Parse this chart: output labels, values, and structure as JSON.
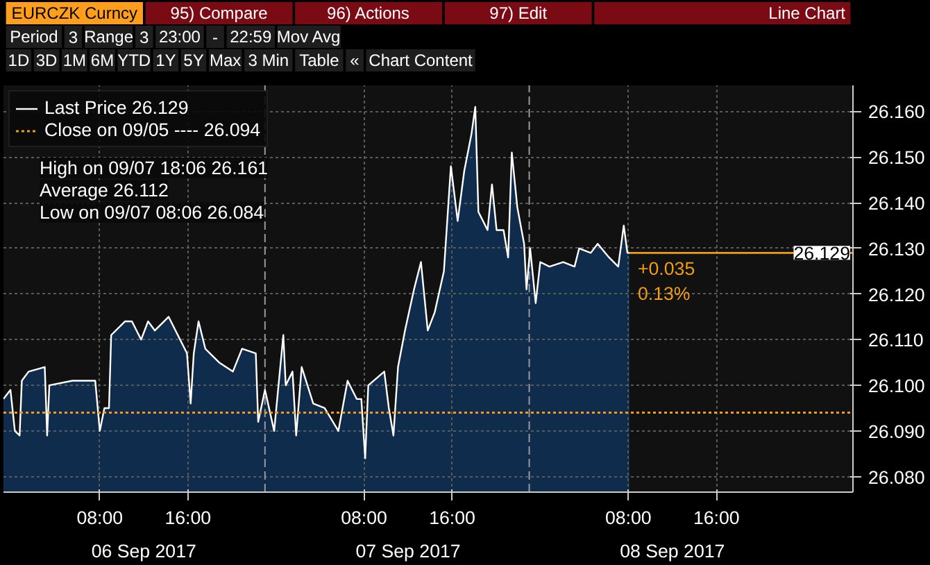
{
  "chart_data": {
    "type": "area",
    "title": "EURCZK Curncy",
    "subtitle": "Line Chart",
    "x": [
      "2017-09-05T23:15",
      "2017-09-05T23:53",
      "2017-09-06T00:17",
      "2017-09-06T00:43",
      "2017-09-06T00:55",
      "2017-09-06T01:32",
      "2017-09-06T03:00",
      "2017-09-06T03:13",
      "2017-09-06T03:25",
      "2017-09-06T05:30",
      "2017-09-06T07:35",
      "2017-09-06T08:00",
      "2017-09-06T08:25",
      "2017-09-06T08:50",
      "2017-09-06T09:02",
      "2017-09-06T10:17",
      "2017-09-06T10:55",
      "2017-09-06T11:45",
      "2017-09-06T12:23",
      "2017-09-06T13:00",
      "2017-09-06T14:15",
      "2017-09-06T15:05",
      "2017-09-06T15:55",
      "2017-09-06T16:15",
      "2017-09-06T16:32",
      "2017-09-06T16:58",
      "2017-09-06T17:35",
      "2017-09-06T18:50",
      "2017-09-06T20:05",
      "2017-09-06T20:55",
      "2017-09-06T22:10",
      "2017-09-06T22:23",
      "2017-09-06T23:00",
      "2017-09-06T23:50",
      "2017-09-07T00:40",
      "2017-09-07T00:53",
      "2017-09-07T01:30",
      "2017-09-07T01:50",
      "2017-09-07T02:20",
      "2017-09-07T03:23",
      "2017-09-07T04:25",
      "2017-09-07T05:40",
      "2017-09-07T06:30",
      "2017-09-07T07:20",
      "2017-09-07T07:45",
      "2017-09-07T08:06",
      "2017-09-07T08:23",
      "2017-09-07T09:50",
      "2017-09-07T10:15",
      "2017-09-07T10:40",
      "2017-09-07T11:05",
      "2017-09-07T11:43",
      "2017-09-07T12:32",
      "2017-09-07T13:10",
      "2017-09-07T13:47",
      "2017-09-07T14:25",
      "2017-09-07T15:15",
      "2017-09-07T15:53",
      "2017-09-07T16:30",
      "2017-09-07T17:06",
      "2017-09-07T17:45",
      "2017-09-07T18:06",
      "2017-09-07T18:23",
      "2017-09-07T19:13",
      "2017-09-07T19:37",
      "2017-09-07T20:02",
      "2017-09-07T20:40",
      "2017-09-07T21:05",
      "2017-09-07T21:25",
      "2017-09-07T21:55",
      "2017-09-07T22:32",
      "2017-09-07T22:45",
      "2017-09-07T23:05",
      "2017-09-07T23:35",
      "2017-09-08T00:00",
      "2017-09-08T00:50",
      "2017-09-08T02:05",
      "2017-09-08T03:07",
      "2017-09-08T03:32",
      "2017-09-08T04:35",
      "2017-09-08T05:13",
      "2017-09-08T06:15",
      "2017-09-08T07:05",
      "2017-09-08T07:35",
      "2017-09-08T07:55",
      "2017-09-08T08:06"
    ],
    "series": [
      {
        "name": "Last Price 26.129",
        "color": "#ffffff",
        "values": [
          26.097,
          26.099,
          26.09,
          26.089,
          26.101,
          26.103,
          26.104,
          26.089,
          26.1,
          26.101,
          26.101,
          26.09,
          26.095,
          26.095,
          26.111,
          26.114,
          26.114,
          26.11,
          26.114,
          26.112,
          26.115,
          26.111,
          26.107,
          26.096,
          26.107,
          26.114,
          26.108,
          26.105,
          26.103,
          26.108,
          26.107,
          26.092,
          26.099,
          26.09,
          26.111,
          26.1,
          26.103,
          26.089,
          26.104,
          26.096,
          26.095,
          26.09,
          26.101,
          26.097,
          26.097,
          26.084,
          26.1,
          26.103,
          26.095,
          26.089,
          26.104,
          26.112,
          26.121,
          26.127,
          26.112,
          26.116,
          26.125,
          26.148,
          26.136,
          26.147,
          26.155,
          26.161,
          26.138,
          26.134,
          26.144,
          26.134,
          26.134,
          26.128,
          26.151,
          26.139,
          26.131,
          26.121,
          26.13,
          26.118,
          26.127,
          26.126,
          26.127,
          26.126,
          26.13,
          26.129,
          26.131,
          26.128,
          26.126,
          26.135,
          26.129,
          26.129
        ]
      },
      {
        "type": "line",
        "color": "#f39c12",
        "x": [
          "2017-09-08T08:06",
          "2017-09-09T04:24"
        ],
        "values": [
          26.129,
          26.129
        ]
      }
    ],
    "xlim": [
      "2017-09-05T23:15",
      "2017-09-09T04:24"
    ],
    "ylim": [
      26.0766,
      26.1657
    ],
    "xticks": [
      {
        "value": "2017-09-06T08:00",
        "label": "08:00"
      },
      {
        "value": "2017-09-06T16:00",
        "label": "16:00"
      },
      {
        "value": "2017-09-07T08:00",
        "label": "08:00"
      },
      {
        "value": "2017-09-07T16:00",
        "label": "16:00"
      },
      {
        "value": "2017-09-08T08:00",
        "label": "08:00"
      },
      {
        "value": "2017-09-08T16:00",
        "label": "16:00"
      }
    ],
    "yticks": [
      {
        "value": 26.08,
        "label": "26.080"
      },
      {
        "value": 26.09,
        "label": "26.090"
      },
      {
        "value": 26.1,
        "label": "26.100"
      },
      {
        "value": 26.11,
        "label": "26.110"
      },
      {
        "value": 26.12,
        "label": "26.120"
      },
      {
        "value": 26.13,
        "label": "26.130"
      },
      {
        "value": 26.14,
        "label": "26.140"
      },
      {
        "value": 26.15,
        "label": "26.150"
      },
      {
        "value": 26.16,
        "label": "26.160"
      }
    ],
    "ref_lines": [
      {
        "axis": "y",
        "value": 26.094,
        "label": "Close on 09/05 ---- 26.094",
        "color": "#f39c12",
        "line_style": "dotted"
      },
      {
        "axis": "x",
        "value": "2017-09-06T23:00",
        "color": "#9a9a9a",
        "line_style": "dashed"
      },
      {
        "axis": "x",
        "value": "2017-09-07T23:00",
        "color": "#9a9a9a",
        "line_style": "dashed"
      }
    ],
    "annotations": [
      "High on 09/07 18:06 26.161",
      "Average 26.112",
      "Low on 09/07 08:06 26.084",
      "95) Compare",
      "96) Actions",
      "97) Edit",
      "Period",
      "3",
      "Range",
      "3",
      "23:00",
      "-",
      "22:59",
      "Mov Avg",
      "1D",
      "3D",
      "1M",
      "6M",
      "YTD",
      "1Y",
      "5Y",
      "Max",
      "3 Min",
      "Table",
      "«",
      "Chart Content",
      {
        "text": "26.129",
        "x": "2017-09-09T04:24",
        "y": 26.129
      },
      {
        "text": "+0.035\n0.13%",
        "x": "2017-09-08T08:06",
        "y": 26.129
      },
      "06 Sep 2017",
      "07 Sep 2017",
      "08 Sep 2017"
    ],
    "grid": true,
    "legend": "top left"
  }
}
